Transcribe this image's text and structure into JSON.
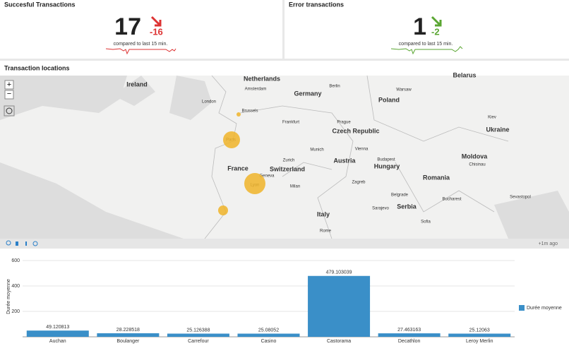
{
  "panels": [
    {
      "title": "Succesful Transactions",
      "value": 17,
      "delta": -16,
      "caption": "compared to last 15 min."
    },
    {
      "title": "Error transactions",
      "value": 1,
      "delta": -2,
      "caption": "compared to last 15 min."
    }
  ],
  "map": {
    "title": "Transaction locations",
    "countries": [
      "Netherlands",
      "Ireland",
      "Germany",
      "Poland",
      "Belarus",
      "Czech Republic",
      "Ukraine",
      "France",
      "Switzerland",
      "Austria",
      "Hungary",
      "Moldova",
      "Romania",
      "Serbia",
      "Italy"
    ],
    "cities": [
      "Amsterdam",
      "Berlin",
      "Warsaw",
      "London",
      "Brussels",
      "Frankfurt",
      "Prague",
      "Kiev",
      "Paris",
      "Munich",
      "Vienna",
      "Zurich",
      "Budapest",
      "Chisinau",
      "Geneva",
      "Lyon",
      "Milan",
      "Zagreb",
      "Belgrade",
      "Bucharest",
      "Sevastopol",
      "Sarajevo",
      "Sofia",
      "Rome"
    ],
    "updated": "+1m ago"
  },
  "chart_data": {
    "type": "bar",
    "ylabel": "Durée moyenne",
    "categories": [
      "Auchan",
      "Boulanger",
      "Carrefour",
      "Casino",
      "Castorama",
      "Decathlon",
      "Leroy Merlin"
    ],
    "series": [
      {
        "name": "Durée moyenne",
        "color": "#3a8fc8",
        "values": [
          49.120813,
          28.228518,
          25.126388,
          25.08052,
          479.103039,
          27.463163,
          25.12063
        ]
      }
    ],
    "ylim": [
      0,
      600
    ],
    "yticks": [
      200,
      400,
      600
    ],
    "grid": true
  }
}
